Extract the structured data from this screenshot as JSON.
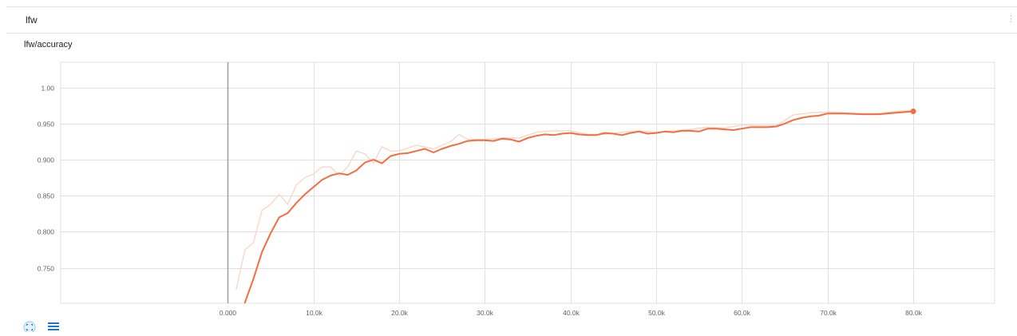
{
  "group": {
    "title": "lfw",
    "more_glyph": "⋮"
  },
  "chart": {
    "title": "lfw/accuracy"
  },
  "icons": {
    "fit_domain": "fit-domain-icon",
    "toggle_log": "menu-lines-icon"
  },
  "colors": {
    "smoothed_line": "#f26d3f",
    "raw_line": "#fbd0c0",
    "grid": "#e0e0e0",
    "zero_axis": "#9e9e9e",
    "button_blue": "#1976d2"
  },
  "chart_data": {
    "type": "line",
    "title": "lfw/accuracy",
    "xlabel": "",
    "ylabel": "",
    "xlim": [
      -19500,
      89500
    ],
    "ylim": [
      0.701,
      1.035
    ],
    "x_ticks": [
      0,
      10000,
      20000,
      30000,
      40000,
      50000,
      60000,
      70000,
      80000
    ],
    "x_tick_labels": [
      "0.000",
      "10.0k",
      "20.0k",
      "30.0k",
      "40.0k",
      "50.0k",
      "60.0k",
      "70.0k",
      "80.0k"
    ],
    "y_ticks": [
      0.75,
      0.8,
      0.85,
      0.9,
      0.95,
      1.0
    ],
    "y_tick_labels": [
      "0.750",
      "0.800",
      "0.850",
      "0.900",
      "0.950",
      "1.00"
    ],
    "grid": true,
    "series": [
      {
        "role": "raw",
        "x": [
          1000,
          2000,
          3000,
          4000,
          5000,
          6000,
          7000,
          8000,
          9000,
          10000,
          11000,
          12000,
          13000,
          14000,
          15000,
          16000,
          17000,
          18000,
          19000,
          20000,
          22000,
          24000,
          26000,
          27000,
          28000,
          30000,
          32000,
          34000,
          36000,
          38000,
          40000,
          42000,
          44000,
          46000,
          48000,
          50000,
          52000,
          54000,
          56000,
          58000,
          60000,
          62000,
          64000,
          66000,
          68000,
          70000,
          72000,
          74000,
          76000,
          78000,
          80000
        ],
        "y": [
          0.72,
          0.775,
          0.785,
          0.83,
          0.838,
          0.852,
          0.838,
          0.865,
          0.875,
          0.88,
          0.89,
          0.89,
          0.878,
          0.89,
          0.912,
          0.908,
          0.895,
          0.918,
          0.912,
          0.912,
          0.92,
          0.915,
          0.925,
          0.935,
          0.928,
          0.928,
          0.93,
          0.93,
          0.938,
          0.94,
          0.94,
          0.935,
          0.935,
          0.938,
          0.94,
          0.938,
          0.94,
          0.942,
          0.945,
          0.944,
          0.948,
          0.947,
          0.947,
          0.962,
          0.965,
          0.966,
          0.965,
          0.964,
          0.964,
          0.967,
          0.968
        ]
      },
      {
        "role": "smoothed",
        "x": [
          2000,
          3000,
          4000,
          5000,
          6000,
          7000,
          8000,
          9000,
          10000,
          11000,
          12000,
          13000,
          14000,
          15000,
          16000,
          17000,
          18000,
          19000,
          20000,
          21000,
          22000,
          23000,
          24000,
          25000,
          26000,
          27000,
          28000,
          29000,
          30000,
          31000,
          32000,
          33000,
          34000,
          35000,
          36000,
          37000,
          38000,
          39000,
          40000,
          41000,
          42000,
          43000,
          44000,
          45000,
          46000,
          47000,
          48000,
          49000,
          50000,
          51000,
          52000,
          53000,
          54000,
          55000,
          56000,
          57000,
          58000,
          59000,
          60000,
          61000,
          62000,
          63000,
          64000,
          65000,
          66000,
          67000,
          68000,
          69000,
          70000,
          72000,
          74000,
          76000,
          78000,
          80000
        ],
        "y": [
          0.702,
          0.735,
          0.772,
          0.798,
          0.82,
          0.826,
          0.84,
          0.852,
          0.862,
          0.872,
          0.878,
          0.881,
          0.879,
          0.885,
          0.896,
          0.9,
          0.895,
          0.905,
          0.908,
          0.909,
          0.912,
          0.915,
          0.91,
          0.915,
          0.919,
          0.922,
          0.926,
          0.927,
          0.927,
          0.926,
          0.929,
          0.928,
          0.925,
          0.93,
          0.933,
          0.935,
          0.934,
          0.936,
          0.937,
          0.935,
          0.934,
          0.934,
          0.937,
          0.936,
          0.934,
          0.937,
          0.939,
          0.936,
          0.937,
          0.939,
          0.938,
          0.94,
          0.94,
          0.939,
          0.943,
          0.943,
          0.942,
          0.941,
          0.943,
          0.945,
          0.945,
          0.945,
          0.946,
          0.95,
          0.955,
          0.958,
          0.96,
          0.961,
          0.964,
          0.964,
          0.963,
          0.963,
          0.965,
          0.967
        ]
      }
    ]
  }
}
